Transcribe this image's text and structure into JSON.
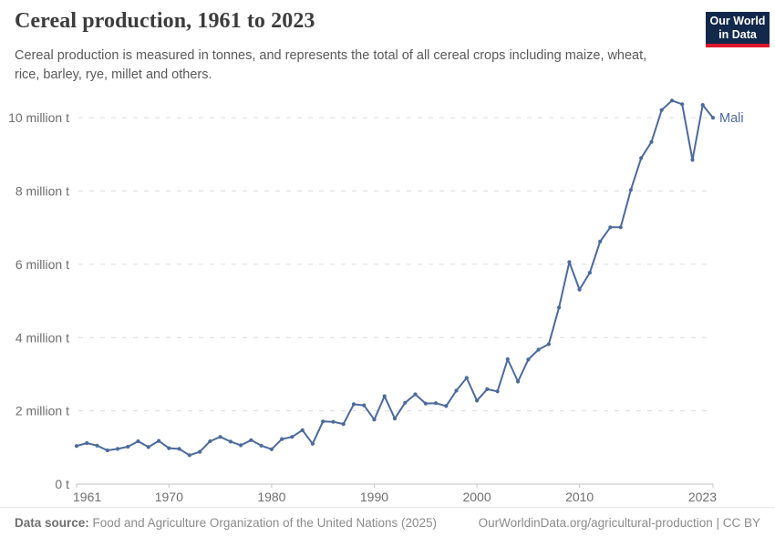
{
  "header": {
    "title": "Cereal production, 1961 to 2023",
    "subtitle": "Cereal production is measured in tonnes, and represents the total of all cereal crops including maize, wheat, rice, barley, rye, millet and others.",
    "logo": {
      "line1": "Our World",
      "line2": "in Data",
      "bg_color": "#12294b",
      "bar_color": "#e0162b"
    }
  },
  "chart_data": {
    "type": "line",
    "title": "Cereal production, 1961 to 2023",
    "unit": "million tonnes",
    "xlabel": "",
    "ylabel": "",
    "grid": "horizontal-dashed",
    "legend_position": "end-of-line-label",
    "xlim": [
      1961,
      2023
    ],
    "ylim": [
      0,
      10.85
    ],
    "x_ticks": [
      1961,
      1970,
      1980,
      1990,
      2000,
      2010,
      2023
    ],
    "y_ticks": [
      {
        "v": 0,
        "label": "0 t"
      },
      {
        "v": 2,
        "label": "2 million t"
      },
      {
        "v": 4,
        "label": "4 million t"
      },
      {
        "v": 6,
        "label": "6 million t"
      },
      {
        "v": 8,
        "label": "8 million t"
      },
      {
        "v": 10,
        "label": "10 million t"
      }
    ],
    "x": [
      1961,
      1962,
      1963,
      1964,
      1965,
      1966,
      1967,
      1968,
      1969,
      1970,
      1971,
      1972,
      1973,
      1974,
      1975,
      1976,
      1977,
      1978,
      1979,
      1980,
      1981,
      1982,
      1983,
      1984,
      1985,
      1986,
      1987,
      1988,
      1989,
      1990,
      1991,
      1992,
      1993,
      1994,
      1995,
      1996,
      1997,
      1998,
      1999,
      2000,
      2001,
      2002,
      2003,
      2004,
      2005,
      2006,
      2007,
      2008,
      2009,
      2010,
      2011,
      2012,
      2013,
      2014,
      2015,
      2016,
      2017,
      2018,
      2019,
      2020,
      2021,
      2022,
      2023
    ],
    "series": [
      {
        "name": "Mali",
        "color": "#4C6A9C",
        "values": [
          1.04,
          1.12,
          1.05,
          0.92,
          0.96,
          1.02,
          1.17,
          1.01,
          1.18,
          0.98,
          0.96,
          0.79,
          0.88,
          1.17,
          1.29,
          1.16,
          1.06,
          1.2,
          1.05,
          0.95,
          1.23,
          1.29,
          1.47,
          1.1,
          1.71,
          1.7,
          1.64,
          2.18,
          2.15,
          1.76,
          2.4,
          1.79,
          2.22,
          2.45,
          2.2,
          2.21,
          2.13,
          2.55,
          2.9,
          2.28,
          2.59,
          2.53,
          3.41,
          2.8,
          3.4,
          3.67,
          3.82,
          4.82,
          6.06,
          5.31,
          5.77,
          6.62,
          7.01,
          7.01,
          8.03,
          8.9,
          9.34,
          10.21,
          10.47,
          10.37,
          8.85,
          10.35,
          10.0
        ]
      }
    ],
    "colors": {
      "gridline": "#dcdcdc",
      "axis_line": "#c4c4c4",
      "tick_text": "#6e6e6e"
    }
  },
  "footer": {
    "source_label": "Data source:",
    "source_text": " Food and Agriculture Organization of the United Nations (2025)",
    "right_text": "OurWorldinData.org/agricultural-production | CC BY"
  }
}
